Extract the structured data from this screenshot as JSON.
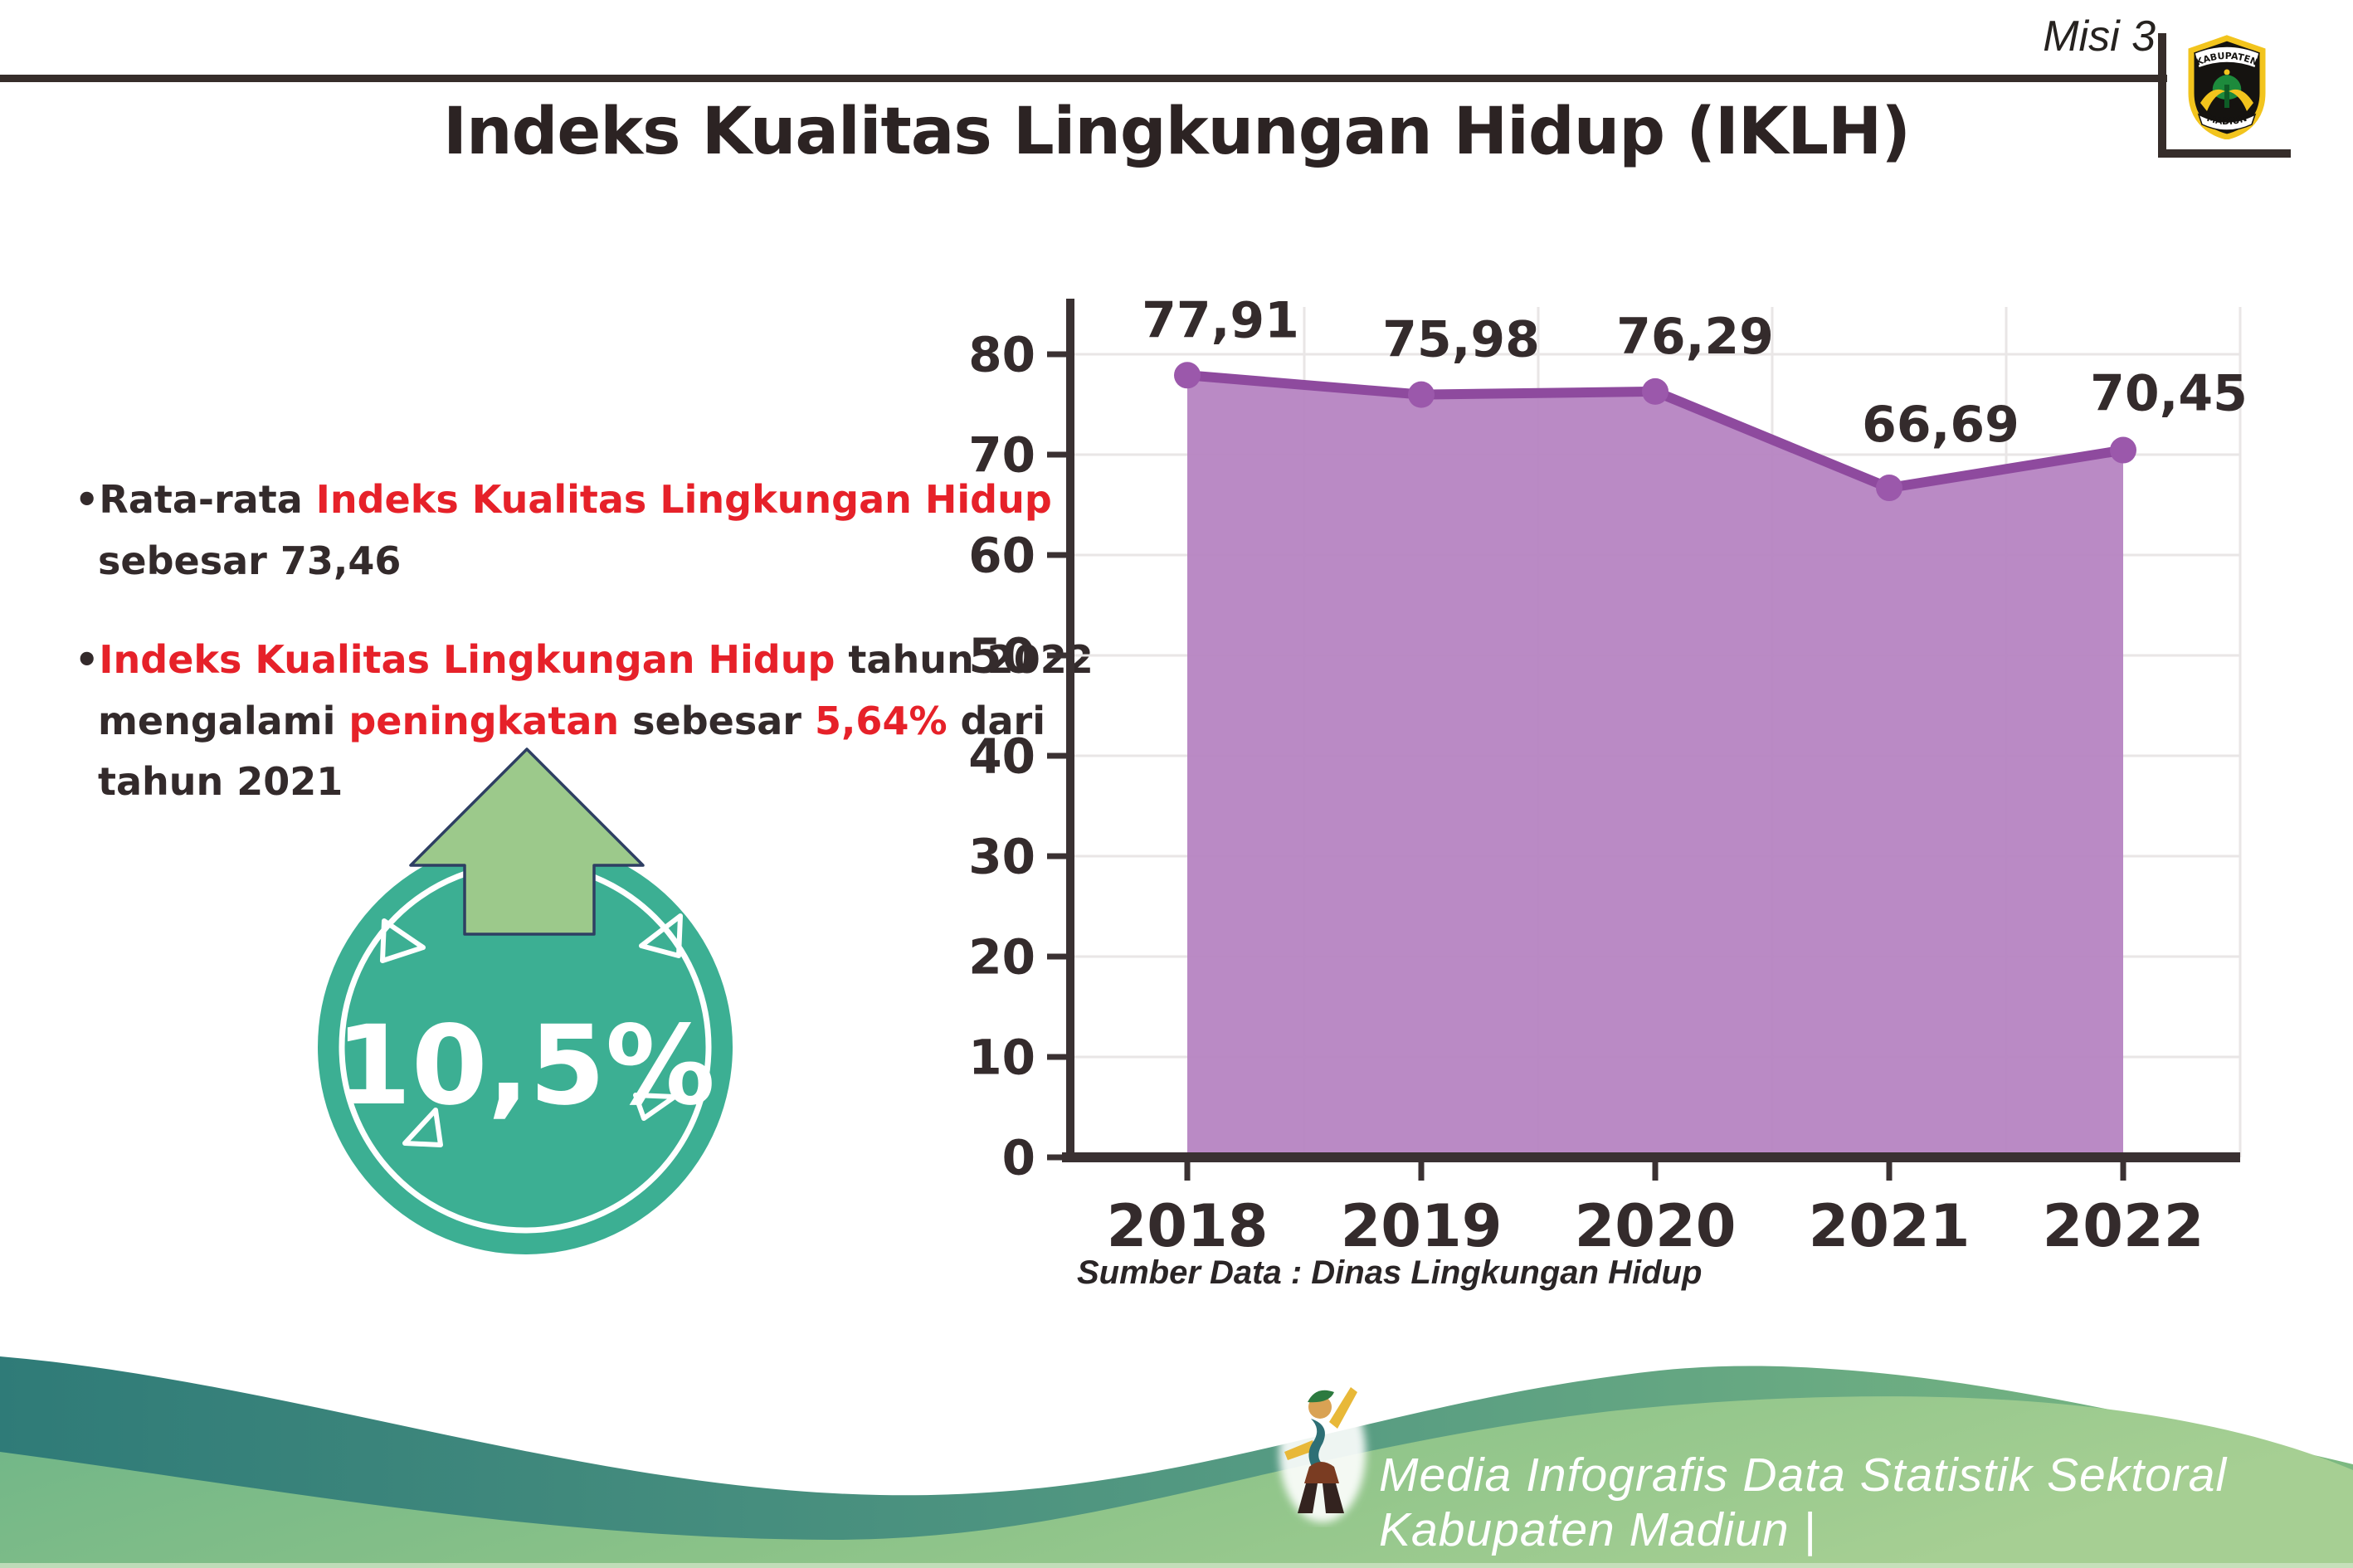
{
  "header": {
    "misi_label": "Misi 3",
    "logo": {
      "top_text": "KABUPATEN",
      "bottom_text": "MADIUN"
    }
  },
  "title": "Indeks Kualitas Lingkungan Hidup (IKLH)",
  "bullets": [
    {
      "lines": [
        [
          {
            "t": "Rata-rata ",
            "c": "dark"
          },
          {
            "t": "Indeks Kualitas Lingkungan Hidup",
            "c": "red"
          }
        ],
        [
          {
            "t": "sebesar 73,46",
            "c": "dark"
          }
        ]
      ]
    },
    {
      "lines": [
        [
          {
            "t": "Indeks Kualitas Lingkungan Hidup",
            "c": "red"
          },
          {
            "t": " tahun 2022",
            "c": "dark"
          }
        ],
        [
          {
            "t": "mengalami ",
            "c": "dark"
          },
          {
            "t": "peningkatan",
            "c": "red"
          },
          {
            "t": " sebesar ",
            "c": "dark"
          },
          {
            "t": "5,64%",
            "c": "red"
          },
          {
            "t": " dari",
            "c": "dark"
          }
        ],
        [
          {
            "t": "tahun 2021",
            "c": "dark"
          }
        ]
      ]
    }
  ],
  "badge": {
    "value": "10,5%",
    "circle_color": "#3caf93",
    "arrow_color": "#9cc98b",
    "arrow_outline": "#2e3f63"
  },
  "chart_data": {
    "type": "area",
    "categories": [
      "2018",
      "2019",
      "2020",
      "2021",
      "2022"
    ],
    "series": [
      {
        "name": "IKLH",
        "values": [
          77.91,
          75.98,
          76.29,
          66.69,
          70.45
        ]
      }
    ],
    "value_labels": [
      "77,91",
      "75,98",
      "76,29",
      "66,69",
      "70,45"
    ],
    "title": "",
    "xlabel": "",
    "ylabel": "",
    "ylim": [
      0,
      80
    ],
    "yticks": [
      "0",
      "10",
      "20",
      "30",
      "40",
      "50",
      "60",
      "70",
      "80"
    ],
    "grid": true,
    "legend": "none",
    "area_fill": "#b684c2",
    "line_color": "#8e4a9e",
    "point_color": "#9b58ab",
    "axis_color": "#3a3132",
    "grid_color": "#e9e6e6",
    "label_color": "#342b2c"
  },
  "source_note": "Sumber Data : Dinas Lingkungan Hidup",
  "footer": {
    "text": "Media Infografis Data Statistik Sektoral Kabupaten Madiun |"
  },
  "colors": {
    "accent_red": "#e62129",
    "dark_text": "#332a2b",
    "rule_dark": "#362d2a",
    "wave_teal": "#2f7b78",
    "wave_green": "#7cb981",
    "hill_green_left": "#6fb588",
    "hill_green_right": "#a6cf93"
  }
}
